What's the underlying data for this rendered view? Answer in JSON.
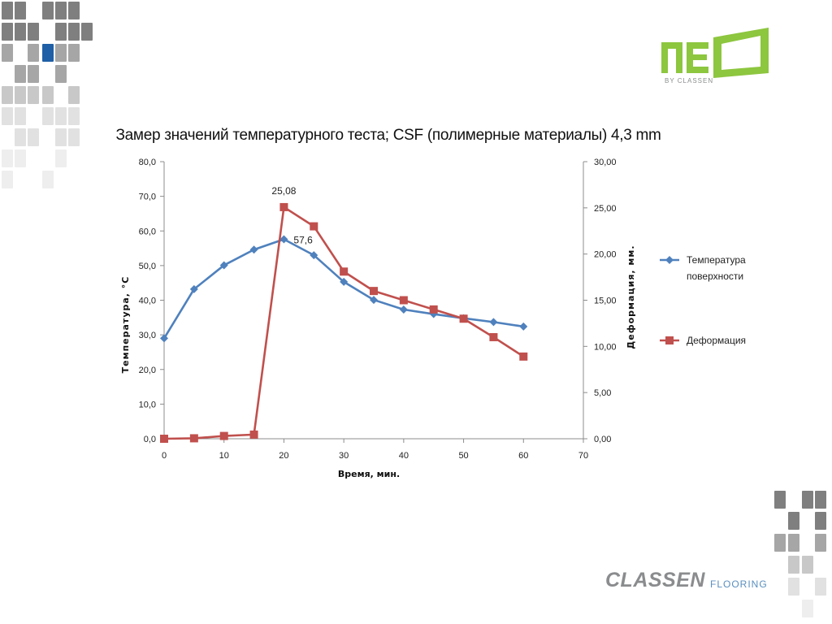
{
  "colors": {
    "temp_series": "#4f81bd",
    "deform_series": "#c0504d",
    "neo_green": "#8dc63f",
    "tile_dark": "#7f7f7f",
    "tile_accent": "#1f5fa6"
  },
  "logos": {
    "neo": "neo",
    "neo_sub": "BY CLASSEN",
    "classen_brand": "CLASSEN",
    "classen_sub": "FLOORING"
  },
  "chart_data": {
    "type": "line",
    "title": "Замер значений температурного теста; CSF (полимерные материалы) 4,3 mm",
    "xlabel": "Время, мин.",
    "ylabel": "Температура,  °C",
    "y2label": "Деформация, мм.",
    "xlim": [
      0,
      70
    ],
    "ylim": [
      0,
      80
    ],
    "y2lim": [
      0,
      30
    ],
    "x_ticks": [
      "0",
      "10",
      "20",
      "30",
      "40",
      "50",
      "60",
      "70"
    ],
    "y_ticks": [
      "0,0",
      "10,0",
      "20,0",
      "30,0",
      "40,0",
      "50,0",
      "60,0",
      "70,0",
      "80,0"
    ],
    "y2_ticks": [
      "0,00",
      "5,00",
      "10,00",
      "15,00",
      "20,00",
      "25,00",
      "30,00"
    ],
    "legend_position": "right",
    "grid": false,
    "series": [
      {
        "name": "Температура поверхности",
        "axis": "left",
        "marker": "diamond",
        "x": [
          0,
          5,
          10,
          15,
          20,
          25,
          30,
          35,
          40,
          45,
          50,
          55,
          60
        ],
        "values": [
          29.0,
          43.2,
          50.1,
          54.6,
          57.6,
          53.0,
          45.3,
          40.1,
          37.3,
          36.0,
          34.8,
          33.7,
          32.4
        ]
      },
      {
        "name": "Деформация",
        "axis": "right",
        "marker": "square",
        "x": [
          0,
          5,
          10,
          15,
          20,
          25,
          30,
          35,
          40,
          45,
          50,
          55,
          60
        ],
        "values": [
          0.0,
          0.05,
          0.3,
          0.45,
          25.08,
          23.0,
          18.1,
          16.0,
          15.0,
          14.0,
          13.0,
          11.0,
          8.9
        ]
      }
    ],
    "annotations": [
      {
        "text": "25,08",
        "series": 1,
        "index": 4
      },
      {
        "text": "57,6",
        "series": 0,
        "index": 4
      }
    ],
    "legend": {
      "items": [
        {
          "lines": [
            "Температура",
            "поверхности"
          ],
          "series": 0
        },
        {
          "lines": [
            "Деформация"
          ],
          "series": 1
        }
      ]
    }
  }
}
